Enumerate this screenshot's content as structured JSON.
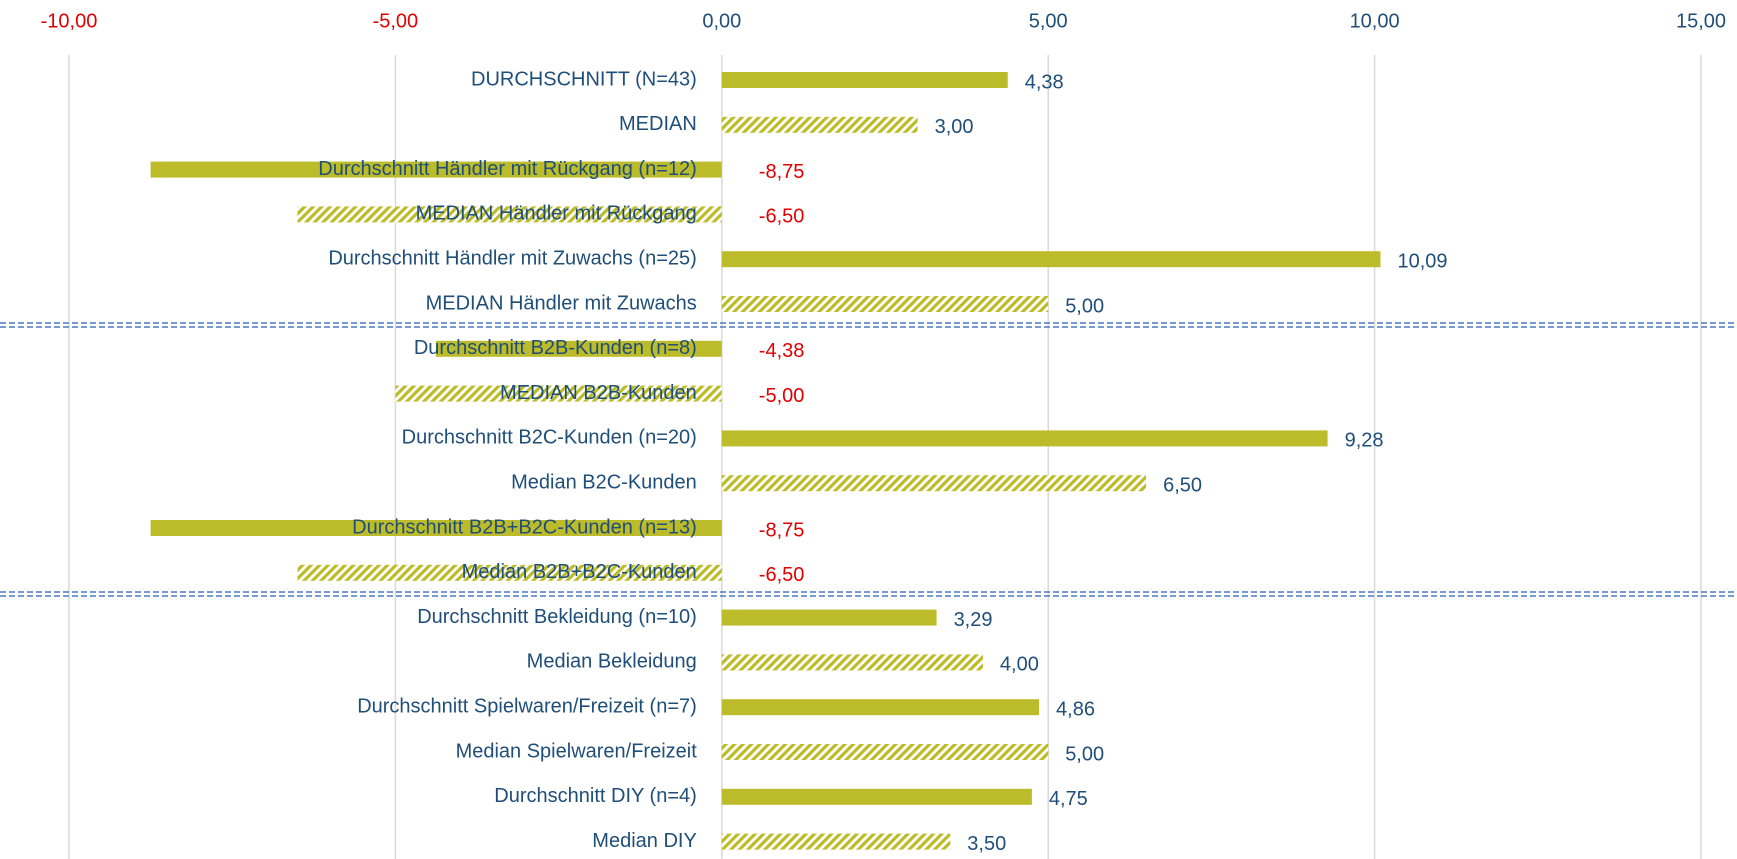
{
  "chart_data": {
    "type": "hbar",
    "categories": [
      "DURCHSCHNITT (N=43)",
      "MEDIAN",
      "Durchschnitt Händler mit Rückgang (n=12)",
      "MEDIAN Händler mit Rückgang",
      "Durchschnitt Händler mit Zuwachs (n=25)",
      "MEDIAN Händler mit Zuwachs",
      "Durchschnitt B2B-Kunden (n=8)",
      "MEDIAN B2B-Kunden",
      "Durchschnitt B2C-Kunden (n=20)",
      "Median B2C-Kunden",
      "Durchschnitt B2B+B2C-Kunden (n=13)",
      "Median B2B+B2C-Kunden",
      "Durchschnitt Bekleidung (n=10)",
      "Median Bekleidung",
      "Durchschnitt Spielwaren/Freizeit (n=7)",
      "Median Spielwaren/Freizeit",
      "Durchschnitt DIY (n=4)",
      "Median DIY"
    ],
    "values": [
      4.38,
      3.0,
      -8.75,
      -6.5,
      10.09,
      5.0,
      -4.38,
      -5.0,
      9.28,
      6.5,
      -8.75,
      -6.5,
      3.29,
      4.0,
      4.86,
      5.0,
      4.75,
      3.5
    ],
    "value_labels": [
      "4,38",
      "3,00",
      "-8,75",
      "-6,50",
      "10,09",
      "5,00",
      "-4,38",
      "-5,00",
      "9,28",
      "6,50",
      "-8,75",
      "-6,50",
      "3,29",
      "4,00",
      "4,86",
      "5,00",
      "4,75",
      "3,50"
    ],
    "bar_styles": [
      "solid",
      "hatched",
      "solid",
      "hatched",
      "solid",
      "hatched",
      "solid",
      "hatched",
      "solid",
      "hatched",
      "solid",
      "hatched",
      "solid",
      "hatched",
      "solid",
      "hatched",
      "solid",
      "hatched"
    ],
    "color": "#bcbc2a",
    "label_color": "#1f4e79",
    "negative_label_color": "#e00000",
    "xlim": [
      -10,
      15
    ],
    "xticks": [
      {
        "value": -10,
        "label": "-10,00"
      },
      {
        "value": -5,
        "label": "-5,00"
      },
      {
        "value": 0,
        "label": "0,00"
      },
      {
        "value": 5,
        "label": "5,00"
      },
      {
        "value": 10,
        "label": "10,00"
      },
      {
        "value": 15,
        "label": "15,00"
      }
    ],
    "xaxis_position": "top",
    "grid": true
  }
}
